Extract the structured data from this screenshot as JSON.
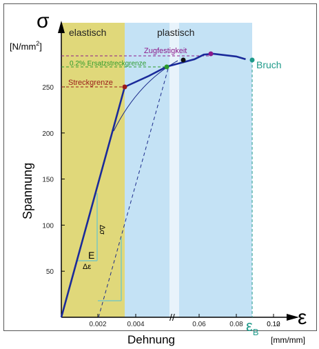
{
  "chart_data": {
    "type": "line",
    "y_symbol": "σ",
    "y_unit": "[N/mm²]",
    "ylabel": "Spannung",
    "x_symbol": "ε",
    "xlabel": "Dehnung",
    "x_unit": "[mm/mm]",
    "regions": [
      {
        "name": "elastisch",
        "color": "#e0d87a",
        "x_range": [
          0,
          0.0034
        ]
      },
      {
        "name": "plastisch",
        "color": "#c4e2f5",
        "x_range": [
          0.0034,
          0.11
        ]
      }
    ],
    "axis_break": "//",
    "y_ticks": [
      50,
      100,
      150,
      200,
      250
    ],
    "x_ticks_left": [
      "0.002",
      "0.004"
    ],
    "x_ticks_right": [
      "0.06",
      "0.08",
      "0.10",
      "0.12"
    ],
    "ylim": [
      0,
      300
    ],
    "curve_points": [
      {
        "x": 0.0,
        "y": 0
      },
      {
        "x": 0.0034,
        "y": 250
      },
      {
        "x": 0.0047,
        "y": 262
      },
      {
        "x": 0.006,
        "y": 272
      },
      {
        "x": 0.055,
        "y": 280
      },
      {
        "x": 0.065,
        "y": 285
      },
      {
        "x": 0.075,
        "y": 286
      },
      {
        "x": 0.1,
        "y": 283
      },
      {
        "x": 0.11,
        "y": 280
      }
    ],
    "annotations": {
      "tensile_strength": {
        "label": "Zugfestigkeit",
        "y": 286,
        "x": 0.075,
        "color": "#8b1a8b"
      },
      "proof_stress": {
        "label": "0.2% Ersatzstreckgrenze",
        "y": 272,
        "color": "#2a9a2a"
      },
      "yield_point": {
        "label": "Streckgrenze",
        "y": 250,
        "color": "#9a1a1a"
      },
      "fracture": {
        "label": "Bruch",
        "color": "#1f9a8a"
      },
      "fracture_strain": {
        "label": "ε",
        "subscript": "B"
      },
      "modulus": {
        "label": "E"
      },
      "delta_strain": "Δε",
      "delta_stress": "Δσ"
    }
  }
}
